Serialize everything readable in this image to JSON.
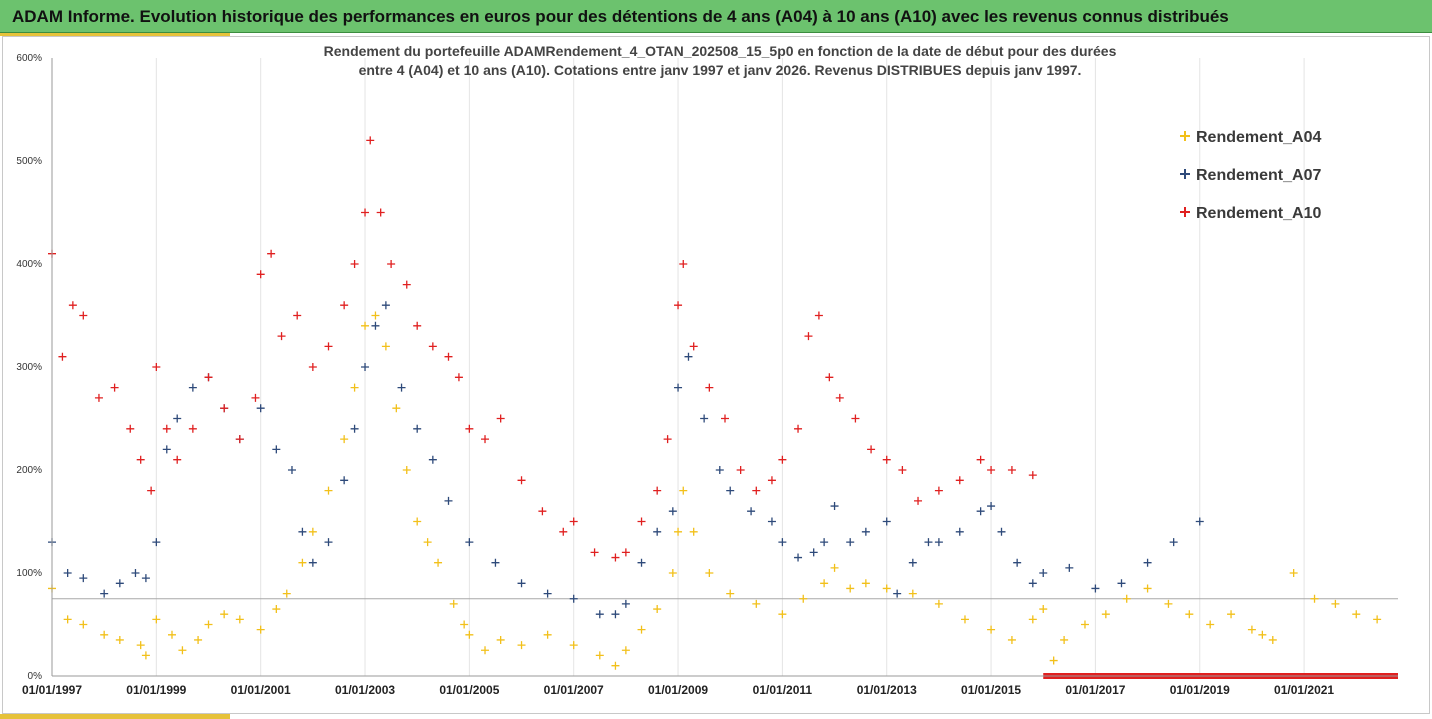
{
  "banner": {
    "title": "ADAM Informe. Evolution historique des performances en euros pour des détentions de 4 ans (A04) à 10 ans (A10) avec les revenus connus distribués"
  },
  "colors": {
    "banner": "#6cc26e",
    "accent": "#e6c23a",
    "A04": "#f2c01a",
    "A07": "#2e4a7a",
    "A10": "#e02020"
  },
  "chart_data": {
    "type": "scatter",
    "title": "Rendement du portefeuille ADAMRendement_4_OTAN_202508_15_5p0  en fonction de la date de début pour des durées entre 4 (A04) et 10 ans (A10). Cotations entre janv 1997 et janv 2026. Revenus DISTRIBUES depuis janv 1997.",
    "title_lines": [
      "Rendement du portefeuille ADAMRendement_4_OTAN_202508_15_5p0  en fonction de la date de début pour des durées",
      "entre 4 (A04) et 10 ans (A10). Cotations entre janv 1997 et janv 2026. Revenus DISTRIBUES depuis janv 1997."
    ],
    "marker": "+",
    "xlim": [
      1997,
      2022.8
    ],
    "ylim": [
      0,
      600
    ],
    "yticks": [
      0,
      100,
      200,
      300,
      400,
      500,
      600
    ],
    "ytick_labels": [
      "0%",
      "100%",
      "200%",
      "300%",
      "400%",
      "500%",
      "600%"
    ],
    "xticks": [
      1997,
      1999,
      2001,
      2003,
      2005,
      2007,
      2009,
      2011,
      2013,
      2015,
      2017,
      2019,
      2021
    ],
    "xtick_labels": [
      "01/01/1997",
      "01/01/1999",
      "01/01/2001",
      "01/01/2003",
      "01/01/2005",
      "01/01/2007",
      "01/01/2009",
      "01/01/2011",
      "01/01/2013",
      "01/01/2015",
      "01/01/2017",
      "01/01/2019",
      "01/01/2021"
    ],
    "reference_line_y": 75,
    "legend_position": "top-right",
    "series": [
      {
        "name": "Rendement_A04",
        "key": "A04",
        "x": [
          1997.0,
          1997.3,
          1997.6,
          1998.0,
          1998.3,
          1998.7,
          1998.8,
          1999.0,
          1999.3,
          1999.5,
          1999.8,
          2000.0,
          2000.3,
          2000.6,
          2001.0,
          2001.3,
          2001.5,
          2001.8,
          2002.0,
          2002.3,
          2002.6,
          2002.8,
          2003.0,
          2003.2,
          2003.4,
          2003.6,
          2003.8,
          2004.0,
          2004.2,
          2004.4,
          2004.7,
          2004.9,
          2005.0,
          2005.3,
          2005.6,
          2006.0,
          2006.5,
          2007.0,
          2007.5,
          2007.8,
          2008.0,
          2008.3,
          2008.6,
          2008.9,
          2009.0,
          2009.1,
          2009.3,
          2009.6,
          2010.0,
          2010.5,
          2011.0,
          2011.4,
          2011.8,
          2012.0,
          2012.3,
          2012.6,
          2013.0,
          2013.5,
          2014.0,
          2014.5,
          2015.0,
          2015.4,
          2015.8,
          2016.0,
          2016.2,
          2016.4,
          2016.8,
          2017.2,
          2017.6,
          2018.0,
          2018.4,
          2018.8,
          2019.2,
          2019.6,
          2020.0,
          2020.2,
          2020.4,
          2020.8,
          2021.2,
          2021.6,
          2022.0,
          2022.4
        ],
        "y": [
          85,
          55,
          50,
          40,
          35,
          30,
          20,
          55,
          40,
          25,
          35,
          50,
          60,
          55,
          45,
          65,
          80,
          110,
          140,
          180,
          230,
          280,
          340,
          350,
          320,
          260,
          200,
          150,
          130,
          110,
          70,
          50,
          40,
          25,
          35,
          30,
          40,
          30,
          20,
          10,
          25,
          45,
          65,
          100,
          140,
          180,
          140,
          100,
          80,
          70,
          60,
          75,
          90,
          105,
          85,
          90,
          85,
          80,
          70,
          55,
          45,
          35,
          55,
          65,
          15,
          35,
          50,
          60,
          75,
          85,
          70,
          60,
          50,
          60,
          45,
          40,
          35,
          100,
          75,
          70,
          60,
          55
        ]
      },
      {
        "name": "Rendement_A07",
        "key": "A07",
        "x": [
          1997.0,
          1997.3,
          1997.6,
          1998.0,
          1998.3,
          1998.6,
          1998.8,
          1999.0,
          1999.2,
          1999.4,
          1999.7,
          2000.0,
          2000.3,
          2000.6,
          2001.0,
          2001.3,
          2001.6,
          2001.8,
          2002.0,
          2002.3,
          2002.6,
          2002.8,
          2003.0,
          2003.2,
          2003.4,
          2003.7,
          2004.0,
          2004.3,
          2004.6,
          2005.0,
          2005.5,
          2006.0,
          2006.5,
          2007.0,
          2007.5,
          2007.8,
          2008.0,
          2008.3,
          2008.6,
          2008.9,
          2009.0,
          2009.2,
          2009.5,
          2009.8,
          2010.0,
          2010.4,
          2010.8,
          2011.0,
          2011.3,
          2011.6,
          2011.8,
          2012.0,
          2012.3,
          2012.6,
          2013.0,
          2013.2,
          2013.5,
          2013.8,
          2014.0,
          2014.4,
          2014.8,
          2015.0,
          2015.2,
          2015.5,
          2015.8,
          2016.0,
          2016.5,
          2017.0,
          2017.5,
          2018.0,
          2018.5,
          2019.0
        ],
        "y": [
          130,
          100,
          95,
          80,
          90,
          100,
          95,
          130,
          220,
          250,
          280,
          290,
          260,
          230,
          260,
          220,
          200,
          140,
          110,
          130,
          190,
          240,
          300,
          340,
          360,
          280,
          240,
          210,
          170,
          130,
          110,
          90,
          80,
          75,
          60,
          60,
          70,
          110,
          140,
          160,
          280,
          310,
          250,
          200,
          180,
          160,
          150,
          130,
          115,
          120,
          130,
          165,
          130,
          140,
          150,
          80,
          110,
          130,
          130,
          140,
          160,
          165,
          140,
          110,
          90,
          100,
          105,
          85,
          90,
          110,
          130,
          150
        ]
      },
      {
        "name": "Rendement_A10",
        "key": "A10",
        "x": [
          1997.0,
          1997.2,
          1997.4,
          1997.6,
          1997.9,
          1998.2,
          1998.5,
          1998.7,
          1998.9,
          1999.0,
          1999.2,
          1999.4,
          1999.7,
          2000.0,
          2000.3,
          2000.6,
          2000.9,
          2001.0,
          2001.2,
          2001.4,
          2001.7,
          2002.0,
          2002.3,
          2002.6,
          2002.8,
          2003.0,
          2003.1,
          2003.3,
          2003.5,
          2003.8,
          2004.0,
          2004.3,
          2004.6,
          2004.8,
          2005.0,
          2005.3,
          2005.6,
          2006.0,
          2006.4,
          2006.8,
          2007.0,
          2007.4,
          2007.8,
          2008.0,
          2008.3,
          2008.6,
          2008.8,
          2009.0,
          2009.1,
          2009.3,
          2009.6,
          2009.9,
          2010.2,
          2010.5,
          2010.8,
          2011.0,
          2011.3,
          2011.5,
          2011.7,
          2011.9,
          2012.1,
          2012.4,
          2012.7,
          2013.0,
          2013.3,
          2013.6,
          2014.0,
          2014.4,
          2014.8,
          2015.0,
          2015.4,
          2015.8
        ],
        "y": [
          410,
          310,
          360,
          350,
          270,
          280,
          240,
          210,
          180,
          300,
          240,
          210,
          240,
          290,
          260,
          230,
          270,
          390,
          410,
          330,
          350,
          300,
          320,
          360,
          400,
          450,
          520,
          450,
          400,
          380,
          340,
          320,
          310,
          290,
          240,
          230,
          250,
          190,
          160,
          140,
          150,
          120,
          115,
          120,
          150,
          180,
          230,
          360,
          400,
          320,
          280,
          250,
          200,
          180,
          190,
          210,
          240,
          330,
          350,
          290,
          270,
          250,
          220,
          210,
          200,
          170,
          180,
          190,
          210,
          200,
          200,
          195
        ]
      }
    ],
    "baseline_band": {
      "x_start": 2016.0,
      "x_end": 2022.8,
      "y": 0,
      "color": "#e02020"
    }
  }
}
